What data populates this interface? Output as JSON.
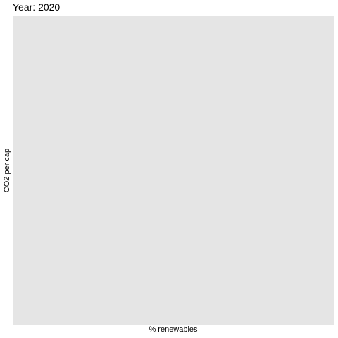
{
  "chart_data": {
    "type": "scatter",
    "title": "Year: 2020",
    "xlabel": "% renewables",
    "ylabel": "CO2 per cap",
    "series": [],
    "grid": false,
    "legend": "none",
    "panel_background": "#e5e5e5"
  }
}
